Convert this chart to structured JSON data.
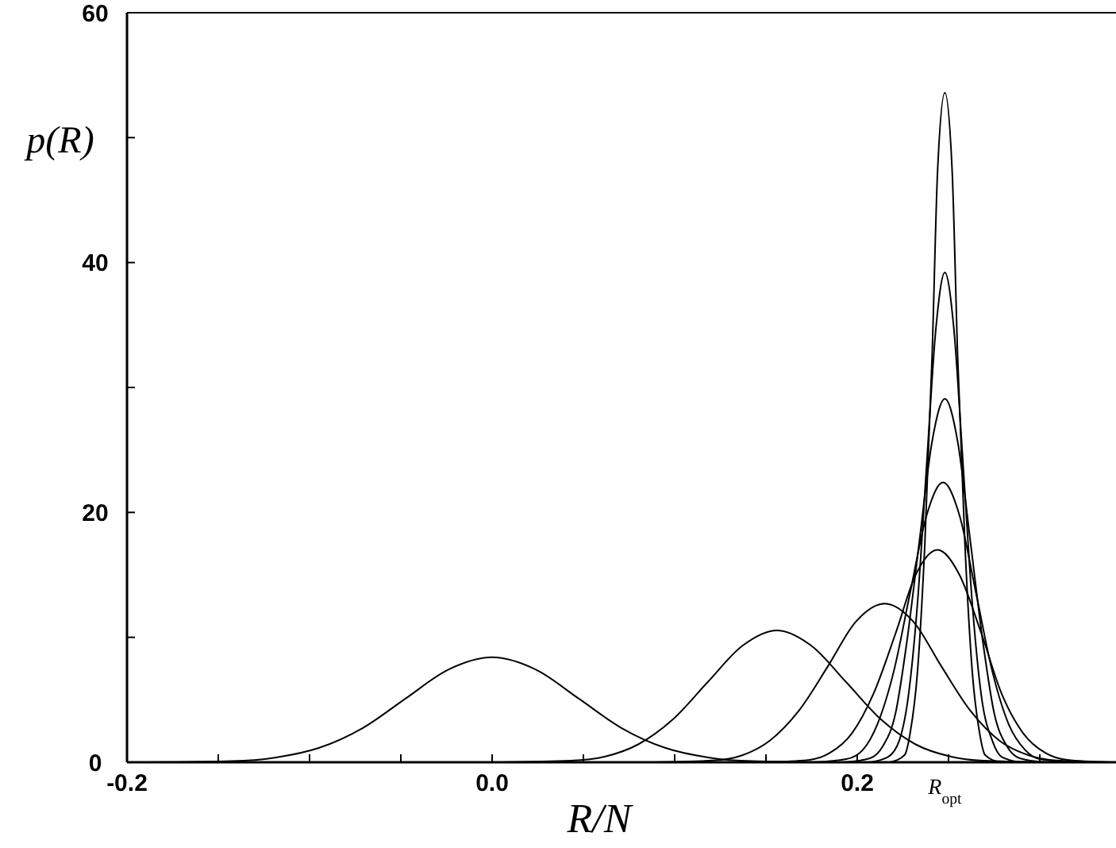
{
  "chart_data": {
    "type": "line",
    "xlabel": "R/N",
    "ylabel": "p(R)",
    "xlim": [
      -0.2,
      0.34
    ],
    "ylim": [
      0,
      60
    ],
    "xticks": [
      -0.2,
      {
        "value": -0.15,
        "label": null
      },
      {
        "value": -0.1,
        "label": null
      },
      {
        "value": -0.05,
        "label": null
      },
      {
        "value": 0,
        "label": "0.0"
      },
      {
        "value": 0.05,
        "label": null
      },
      {
        "value": 0.1,
        "label": null
      },
      {
        "value": 0.15,
        "label": null
      },
      0.2,
      {
        "value": 0.25,
        "label": null
      },
      {
        "value": 0.3,
        "label": null
      }
    ],
    "yticks": [
      0,
      {
        "value": 10,
        "label": null
      },
      20,
      {
        "value": 30,
        "label": null
      },
      40,
      {
        "value": 50,
        "label": null
      },
      60
    ],
    "annotations": [
      {
        "text": "R$_{opt}$",
        "x": 0.248,
        "y": 0
      }
    ],
    "series": [
      {
        "color": "#000000",
        "x": [
          -0.19,
          -0.1425,
          -0.119,
          -0.095,
          -0.071,
          -0.0475,
          -0.024,
          0,
          0.024,
          0.0475,
          0.071,
          0.095,
          0.119,
          0.1425,
          0.19
        ],
        "values": [
          0,
          0.09,
          0.37,
          1.14,
          2.73,
          5.09,
          7.41,
          8.4,
          7.41,
          5.09,
          2.73,
          1.14,
          0.37,
          0.09,
          0
        ]
      },
      {
        "color": "#000000",
        "x": [
          0.005,
          0.043,
          0.062,
          0.08,
          0.099,
          0.118,
          0.137,
          0.156,
          0.175,
          0.194,
          0.213,
          0.232,
          0.251,
          0.269,
          0.307
        ],
        "values": [
          0,
          0.12,
          0.46,
          1.43,
          3.43,
          6.4,
          9.31,
          10.55,
          9.31,
          6.4,
          3.43,
          1.43,
          0.46,
          0.12,
          0
        ]
      },
      {
        "color": "#000000",
        "x": [
          0.089,
          0.121,
          0.137,
          0.152,
          0.168,
          0.184,
          0.199,
          0.215,
          0.231,
          0.246,
          0.262,
          0.278,
          0.294,
          0.309,
          0.34
        ],
        "values": [
          0,
          0.14,
          0.56,
          1.72,
          4.12,
          7.7,
          11.21,
          12.7,
          11.21,
          7.7,
          4.12,
          1.72,
          0.56,
          0.14,
          0
        ]
      },
      {
        "color": "#000000",
        "x": [
          0.15,
          0.174,
          0.185,
          0.197,
          0.209,
          0.221,
          0.232,
          0.244,
          0.256,
          0.268,
          0.279,
          0.291,
          0.303,
          0.315,
          0.338
        ],
        "values": [
          0,
          0.19,
          0.75,
          2.3,
          5.52,
          10.31,
          15,
          17,
          15,
          10.31,
          5.52,
          2.3,
          0.75,
          0.19,
          0
        ]
      },
      {
        "color": "#000000",
        "x": [
          0.176,
          0.194,
          0.203,
          0.211,
          0.22,
          0.229,
          0.238,
          0.247,
          0.256,
          0.265,
          0.274,
          0.283,
          0.292,
          0.3,
          0.318
        ],
        "values": [
          0,
          0.25,
          0.98,
          3.03,
          7.27,
          13.59,
          19.77,
          22.4,
          19.77,
          13.59,
          7.27,
          3.03,
          0.98,
          0.25,
          0
        ]
      },
      {
        "color": "#000000",
        "x": [
          0.193,
          0.207,
          0.214,
          0.221,
          0.227,
          0.234,
          0.241,
          0.248,
          0.255,
          0.262,
          0.269,
          0.275,
          0.282,
          0.289,
          0.303
        ],
        "values": [
          0,
          0.32,
          1.28,
          3.94,
          9.45,
          17.65,
          25.68,
          29.1,
          25.68,
          17.65,
          9.45,
          3.94,
          1.28,
          0.32,
          0
        ]
      },
      {
        "color": "#000000",
        "x": [
          0.207,
          0.217,
          0.223,
          0.228,
          0.233,
          0.238,
          0.243,
          0.248,
          0.253,
          0.258,
          0.263,
          0.268,
          0.274,
          0.279,
          0.289
        ],
        "values": [
          0,
          0.44,
          1.72,
          5.3,
          12.73,
          23.77,
          34.59,
          39.2,
          34.59,
          23.77,
          12.73,
          5.3,
          1.72,
          0.44,
          0
        ]
      },
      {
        "color": "#000000",
        "x": [
          0.218,
          0.226,
          0.229,
          0.233,
          0.237,
          0.241,
          0.244,
          0.248,
          0.252,
          0.255,
          0.259,
          0.263,
          0.267,
          0.27,
          0.278
        ],
        "values": [
          0,
          0.59,
          2.35,
          7.25,
          17.4,
          32.5,
          47.3,
          53.6,
          47.3,
          32.5,
          17.4,
          7.25,
          2.35,
          0.59,
          0
        ]
      }
    ]
  }
}
